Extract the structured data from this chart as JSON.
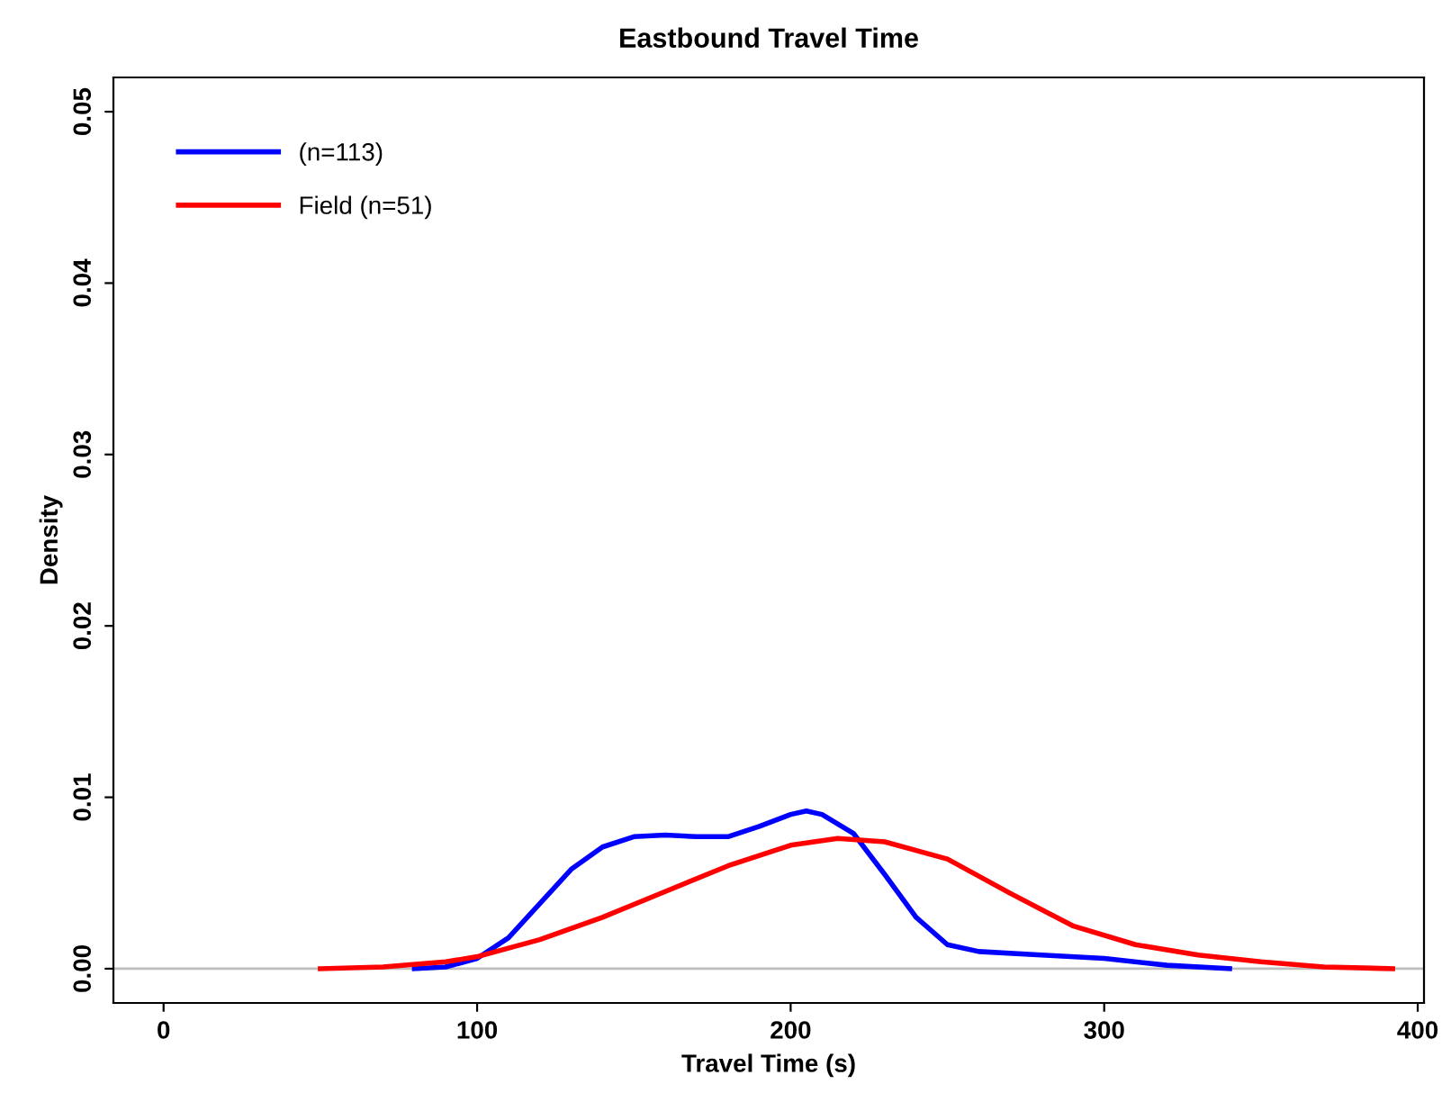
{
  "chart_data": {
    "type": "line",
    "title": "Eastbound Travel Time",
    "xlabel": "Travel Time (s)",
    "ylabel": "Density",
    "xlim": [
      -16,
      402
    ],
    "ylim": [
      -0.002,
      0.052
    ],
    "xticks": [
      0,
      100,
      200,
      300,
      400
    ],
    "yticks": [
      {
        "value": 0,
        "label": "0.00"
      },
      {
        "value": 0.01,
        "label": "0.01"
      },
      {
        "value": 0.02,
        "label": "0.02"
      },
      {
        "value": 0.03,
        "label": "0.03"
      },
      {
        "value": 0.04,
        "label": "0.04"
      },
      {
        "value": 0.05,
        "label": "0.05"
      }
    ],
    "grid": false,
    "legend": "top left",
    "marker": "none",
    "line_style": "solid",
    "ref_lines": [
      {
        "axis": "y",
        "value": 0,
        "color": "#bebebe"
      }
    ],
    "series": [
      {
        "name": "(n=113)",
        "color": "#0000ff",
        "x": [
          80,
          90,
          100,
          110,
          120,
          130,
          140,
          150,
          160,
          170,
          180,
          190,
          200,
          205,
          210,
          220,
          230,
          240,
          250,
          260,
          280,
          300,
          320,
          340
        ],
        "values": [
          0,
          0.0001,
          0.0006,
          0.0018,
          0.0038,
          0.0058,
          0.0071,
          0.0077,
          0.0078,
          0.0077,
          0.0077,
          0.0083,
          0.009,
          0.0092,
          0.009,
          0.0079,
          0.0055,
          0.003,
          0.0014,
          0.001,
          0.0008,
          0.0006,
          0.0002,
          0
        ]
      },
      {
        "name": "Field (n=51)",
        "color": "#ff0000",
        "x": [
          50,
          70,
          90,
          100,
          120,
          140,
          160,
          180,
          200,
          215,
          230,
          250,
          270,
          290,
          310,
          330,
          350,
          370,
          392
        ],
        "values": [
          0,
          0.0001,
          0.0004,
          0.0007,
          0.0017,
          0.003,
          0.0045,
          0.006,
          0.0072,
          0.0076,
          0.0074,
          0.0064,
          0.0044,
          0.0025,
          0.0014,
          0.0008,
          0.0004,
          0.0001,
          0
        ]
      }
    ]
  }
}
